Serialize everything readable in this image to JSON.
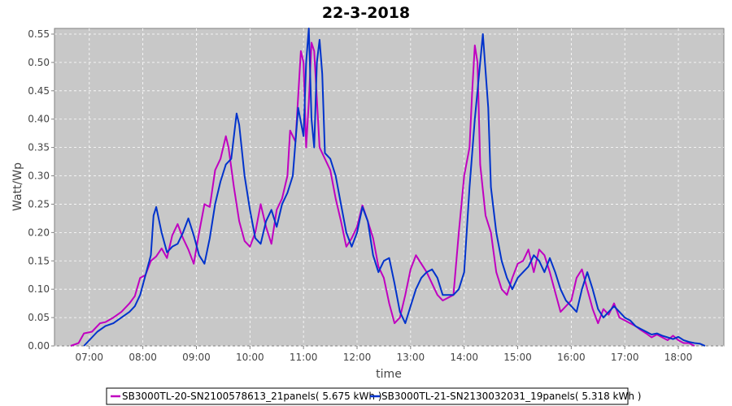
{
  "chart_data": {
    "type": "line",
    "title": "22-3-2018",
    "xlabel": "time",
    "ylabel": "Watt/Wp",
    "xlim": [
      6.35,
      18.85
    ],
    "ylim": [
      0,
      0.56
    ],
    "x_ticks": [
      "07:00",
      "08:00",
      "09:00",
      "10:00",
      "11:00",
      "12:00",
      "13:00",
      "14:00",
      "15:00",
      "16:00",
      "17:00",
      "18:00"
    ],
    "y_ticks": [
      "0.00",
      "0.05",
      "0.10",
      "0.15",
      "0.20",
      "0.25",
      "0.30",
      "0.35",
      "0.40",
      "0.45",
      "0.50",
      "0.55"
    ],
    "grid": true,
    "legend_position": "bottom",
    "plot_background": "#c8c8c8",
    "series": [
      {
        "name": "SB3000TL-20-SN2100578613_21panels( 5.675 kWh )",
        "color": "#c000c0",
        "points": [
          [
            6.65,
            0.0
          ],
          [
            6.8,
            0.005
          ],
          [
            6.9,
            0.022
          ],
          [
            7.05,
            0.025
          ],
          [
            7.2,
            0.04
          ],
          [
            7.3,
            0.042
          ],
          [
            7.45,
            0.05
          ],
          [
            7.6,
            0.06
          ],
          [
            7.75,
            0.075
          ],
          [
            7.85,
            0.088
          ],
          [
            7.95,
            0.12
          ],
          [
            8.05,
            0.125
          ],
          [
            8.15,
            0.15
          ],
          [
            8.25,
            0.158
          ],
          [
            8.35,
            0.172
          ],
          [
            8.45,
            0.155
          ],
          [
            8.55,
            0.195
          ],
          [
            8.65,
            0.215
          ],
          [
            8.75,
            0.19
          ],
          [
            8.85,
            0.17
          ],
          [
            8.95,
            0.145
          ],
          [
            9.05,
            0.2
          ],
          [
            9.15,
            0.25
          ],
          [
            9.25,
            0.245
          ],
          [
            9.35,
            0.31
          ],
          [
            9.45,
            0.33
          ],
          [
            9.55,
            0.37
          ],
          [
            9.6,
            0.35
          ],
          [
            9.7,
            0.28
          ],
          [
            9.8,
            0.22
          ],
          [
            9.9,
            0.185
          ],
          [
            10.0,
            0.175
          ],
          [
            10.1,
            0.2
          ],
          [
            10.2,
            0.25
          ],
          [
            10.3,
            0.21
          ],
          [
            10.4,
            0.18
          ],
          [
            10.5,
            0.24
          ],
          [
            10.6,
            0.26
          ],
          [
            10.7,
            0.3
          ],
          [
            10.75,
            0.38
          ],
          [
            10.85,
            0.36
          ],
          [
            10.9,
            0.44
          ],
          [
            10.95,
            0.52
          ],
          [
            11.0,
            0.5
          ],
          [
            11.05,
            0.35
          ],
          [
            11.1,
            0.43
          ],
          [
            11.15,
            0.535
          ],
          [
            11.2,
            0.52
          ],
          [
            11.3,
            0.35
          ],
          [
            11.4,
            0.33
          ],
          [
            11.5,
            0.31
          ],
          [
            11.6,
            0.26
          ],
          [
            11.7,
            0.22
          ],
          [
            11.8,
            0.175
          ],
          [
            11.9,
            0.19
          ],
          [
            12.0,
            0.21
          ],
          [
            12.1,
            0.248
          ],
          [
            12.2,
            0.22
          ],
          [
            12.3,
            0.19
          ],
          [
            12.4,
            0.14
          ],
          [
            12.5,
            0.12
          ],
          [
            12.6,
            0.075
          ],
          [
            12.7,
            0.04
          ],
          [
            12.8,
            0.05
          ],
          [
            12.9,
            0.09
          ],
          [
            13.0,
            0.135
          ],
          [
            13.1,
            0.16
          ],
          [
            13.2,
            0.145
          ],
          [
            13.3,
            0.13
          ],
          [
            13.4,
            0.11
          ],
          [
            13.5,
            0.09
          ],
          [
            13.6,
            0.08
          ],
          [
            13.7,
            0.085
          ],
          [
            13.8,
            0.09
          ],
          [
            13.9,
            0.2
          ],
          [
            14.0,
            0.3
          ],
          [
            14.1,
            0.35
          ],
          [
            14.15,
            0.45
          ],
          [
            14.2,
            0.53
          ],
          [
            14.25,
            0.5
          ],
          [
            14.3,
            0.32
          ],
          [
            14.4,
            0.23
          ],
          [
            14.5,
            0.2
          ],
          [
            14.6,
            0.13
          ],
          [
            14.7,
            0.1
          ],
          [
            14.8,
            0.09
          ],
          [
            14.9,
            0.12
          ],
          [
            15.0,
            0.145
          ],
          [
            15.1,
            0.15
          ],
          [
            15.2,
            0.17
          ],
          [
            15.3,
            0.13
          ],
          [
            15.4,
            0.17
          ],
          [
            15.5,
            0.16
          ],
          [
            15.6,
            0.13
          ],
          [
            15.7,
            0.095
          ],
          [
            15.8,
            0.06
          ],
          [
            15.9,
            0.07
          ],
          [
            16.0,
            0.08
          ],
          [
            16.1,
            0.12
          ],
          [
            16.2,
            0.135
          ],
          [
            16.3,
            0.1
          ],
          [
            16.4,
            0.065
          ],
          [
            16.5,
            0.04
          ],
          [
            16.6,
            0.065
          ],
          [
            16.7,
            0.055
          ],
          [
            16.8,
            0.075
          ],
          [
            16.9,
            0.05
          ],
          [
            17.0,
            0.045
          ],
          [
            17.1,
            0.04
          ],
          [
            17.2,
            0.035
          ],
          [
            17.3,
            0.028
          ],
          [
            17.4,
            0.022
          ],
          [
            17.5,
            0.015
          ],
          [
            17.6,
            0.02
          ],
          [
            17.7,
            0.015
          ],
          [
            17.8,
            0.01
          ],
          [
            17.9,
            0.018
          ],
          [
            18.0,
            0.01
          ],
          [
            18.1,
            0.005
          ],
          [
            18.2,
            0.005
          ],
          [
            18.3,
            0.0
          ]
        ]
      },
      {
        "name": "SB3000TL-21-SN2130032031_19panels( 5.318 kWh )",
        "color": "#0033cc",
        "points": [
          [
            6.9,
            0.0
          ],
          [
            7.0,
            0.01
          ],
          [
            7.15,
            0.025
          ],
          [
            7.3,
            0.035
          ],
          [
            7.45,
            0.04
          ],
          [
            7.6,
            0.05
          ],
          [
            7.75,
            0.06
          ],
          [
            7.85,
            0.07
          ],
          [
            7.95,
            0.09
          ],
          [
            8.05,
            0.125
          ],
          [
            8.15,
            0.16
          ],
          [
            8.2,
            0.23
          ],
          [
            8.25,
            0.245
          ],
          [
            8.35,
            0.2
          ],
          [
            8.45,
            0.165
          ],
          [
            8.55,
            0.175
          ],
          [
            8.65,
            0.18
          ],
          [
            8.75,
            0.2
          ],
          [
            8.85,
            0.225
          ],
          [
            8.95,
            0.195
          ],
          [
            9.05,
            0.16
          ],
          [
            9.15,
            0.145
          ],
          [
            9.25,
            0.19
          ],
          [
            9.35,
            0.25
          ],
          [
            9.45,
            0.29
          ],
          [
            9.55,
            0.32
          ],
          [
            9.65,
            0.33
          ],
          [
            9.75,
            0.41
          ],
          [
            9.8,
            0.39
          ],
          [
            9.9,
            0.3
          ],
          [
            10.0,
            0.24
          ],
          [
            10.1,
            0.19
          ],
          [
            10.2,
            0.18
          ],
          [
            10.3,
            0.22
          ],
          [
            10.4,
            0.24
          ],
          [
            10.5,
            0.21
          ],
          [
            10.6,
            0.25
          ],
          [
            10.7,
            0.27
          ],
          [
            10.8,
            0.3
          ],
          [
            10.9,
            0.42
          ],
          [
            11.0,
            0.37
          ],
          [
            11.05,
            0.5
          ],
          [
            11.1,
            0.56
          ],
          [
            11.15,
            0.4
          ],
          [
            11.2,
            0.35
          ],
          [
            11.25,
            0.5
          ],
          [
            11.3,
            0.54
          ],
          [
            11.35,
            0.48
          ],
          [
            11.4,
            0.34
          ],
          [
            11.5,
            0.33
          ],
          [
            11.6,
            0.3
          ],
          [
            11.7,
            0.25
          ],
          [
            11.8,
            0.2
          ],
          [
            11.9,
            0.175
          ],
          [
            12.0,
            0.2
          ],
          [
            12.1,
            0.245
          ],
          [
            12.2,
            0.22
          ],
          [
            12.3,
            0.16
          ],
          [
            12.4,
            0.13
          ],
          [
            12.5,
            0.15
          ],
          [
            12.6,
            0.155
          ],
          [
            12.7,
            0.11
          ],
          [
            12.8,
            0.06
          ],
          [
            12.9,
            0.04
          ],
          [
            13.0,
            0.07
          ],
          [
            13.1,
            0.1
          ],
          [
            13.2,
            0.12
          ],
          [
            13.3,
            0.13
          ],
          [
            13.4,
            0.135
          ],
          [
            13.5,
            0.12
          ],
          [
            13.6,
            0.09
          ],
          [
            13.7,
            0.09
          ],
          [
            13.8,
            0.09
          ],
          [
            13.9,
            0.1
          ],
          [
            14.0,
            0.13
          ],
          [
            14.1,
            0.28
          ],
          [
            14.2,
            0.4
          ],
          [
            14.3,
            0.5
          ],
          [
            14.35,
            0.55
          ],
          [
            14.45,
            0.42
          ],
          [
            14.5,
            0.28
          ],
          [
            14.6,
            0.2
          ],
          [
            14.7,
            0.15
          ],
          [
            14.8,
            0.12
          ],
          [
            14.9,
            0.1
          ],
          [
            15.0,
            0.12
          ],
          [
            15.1,
            0.13
          ],
          [
            15.2,
            0.14
          ],
          [
            15.3,
            0.16
          ],
          [
            15.4,
            0.15
          ],
          [
            15.5,
            0.13
          ],
          [
            15.6,
            0.155
          ],
          [
            15.7,
            0.13
          ],
          [
            15.8,
            0.1
          ],
          [
            15.9,
            0.08
          ],
          [
            16.0,
            0.07
          ],
          [
            16.1,
            0.06
          ],
          [
            16.2,
            0.1
          ],
          [
            16.3,
            0.13
          ],
          [
            16.4,
            0.1
          ],
          [
            16.5,
            0.065
          ],
          [
            16.6,
            0.05
          ],
          [
            16.7,
            0.06
          ],
          [
            16.8,
            0.07
          ],
          [
            16.9,
            0.06
          ],
          [
            17.0,
            0.05
          ],
          [
            17.1,
            0.045
          ],
          [
            17.2,
            0.035
          ],
          [
            17.3,
            0.03
          ],
          [
            17.4,
            0.025
          ],
          [
            17.5,
            0.02
          ],
          [
            17.6,
            0.022
          ],
          [
            17.7,
            0.018
          ],
          [
            17.8,
            0.015
          ],
          [
            17.9,
            0.012
          ],
          [
            18.0,
            0.016
          ],
          [
            18.1,
            0.01
          ],
          [
            18.2,
            0.007
          ],
          [
            18.3,
            0.005
          ],
          [
            18.4,
            0.004
          ],
          [
            18.5,
            0.0
          ]
        ]
      }
    ]
  }
}
